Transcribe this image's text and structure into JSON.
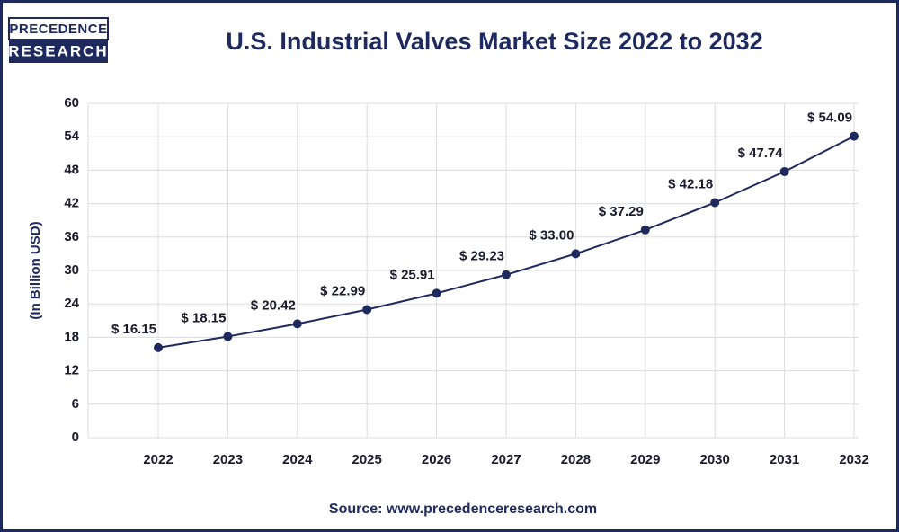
{
  "logo": {
    "line1": "PRECEDENCE",
    "line2": "RESEARCH"
  },
  "chart_data": {
    "type": "line",
    "title": "U.S. Industrial Valves Market Size 2022 to 2032",
    "y_label": "(In Billion USD)",
    "categories": [
      "2022",
      "2023",
      "2024",
      "2025",
      "2026",
      "2027",
      "2028",
      "2029",
      "2030",
      "2031",
      "2032"
    ],
    "series": [
      {
        "name": "U.S. Industrial Valves Market Size",
        "color": "#1e2a5e",
        "values": [
          16.15,
          18.15,
          20.42,
          22.99,
          25.91,
          29.23,
          33,
          37.29,
          42.18,
          47.74,
          54.09
        ],
        "value_labels": [
          "$ 16.15",
          "$ 18.15",
          "$ 20.42",
          "$ 22.99",
          "$ 25.91",
          "$ 29.23",
          "$ 33.00",
          "$ 37.29",
          "$ 42.18",
          "$ 47.74",
          "$ 54.09"
        ]
      }
    ],
    "ylim": [
      0,
      60
    ],
    "yticks": [
      0,
      6,
      12,
      18,
      24,
      30,
      36,
      42,
      48,
      54,
      60
    ],
    "grid": true,
    "source": "Source: www.precedenceresearch.com"
  }
}
